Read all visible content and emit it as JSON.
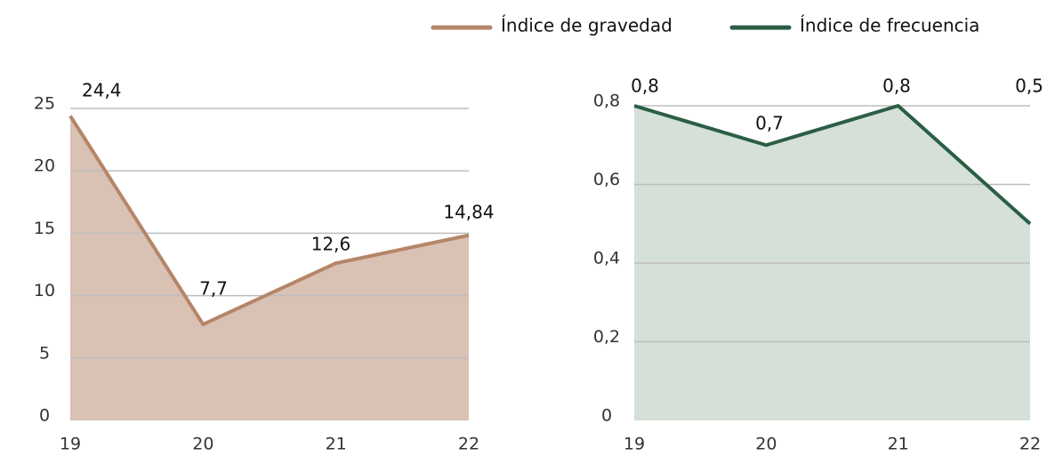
{
  "chart_data": [
    {
      "type": "area",
      "categories": [
        "19",
        "20",
        "21",
        "22"
      ],
      "series": [
        {
          "name": "Índice de gravedad",
          "color": "#b58568",
          "fill": "#d9c1b4",
          "values": [
            24.4,
            7.7,
            12.6,
            14.84
          ],
          "value_labels": [
            "24,4",
            "7,7",
            "12,6",
            "14,84"
          ]
        }
      ],
      "ylim": [
        0,
        25
      ],
      "yticks": [
        0,
        5,
        10,
        15,
        20,
        25
      ],
      "grid": true
    },
    {
      "type": "area",
      "categories": [
        "19",
        "20",
        "21",
        "22"
      ],
      "series": [
        {
          "name": "Índice de frecuencia",
          "color": "#2b5e45",
          "fill": "#d4e0d8",
          "values": [
            0.8,
            0.7,
            0.8,
            0.5
          ],
          "value_labels": [
            "0,8",
            "0,7",
            "0,8",
            "0,5"
          ]
        }
      ],
      "ylim": [
        0,
        0.8
      ],
      "yticks": [
        0,
        {
          "value": 0.2,
          "label": "0,2"
        },
        {
          "value": 0.4,
          "label": "0,4"
        },
        {
          "value": 0.6,
          "label": "0,6"
        },
        {
          "value": 0.8,
          "label": "0,8"
        }
      ],
      "grid": true
    }
  ]
}
